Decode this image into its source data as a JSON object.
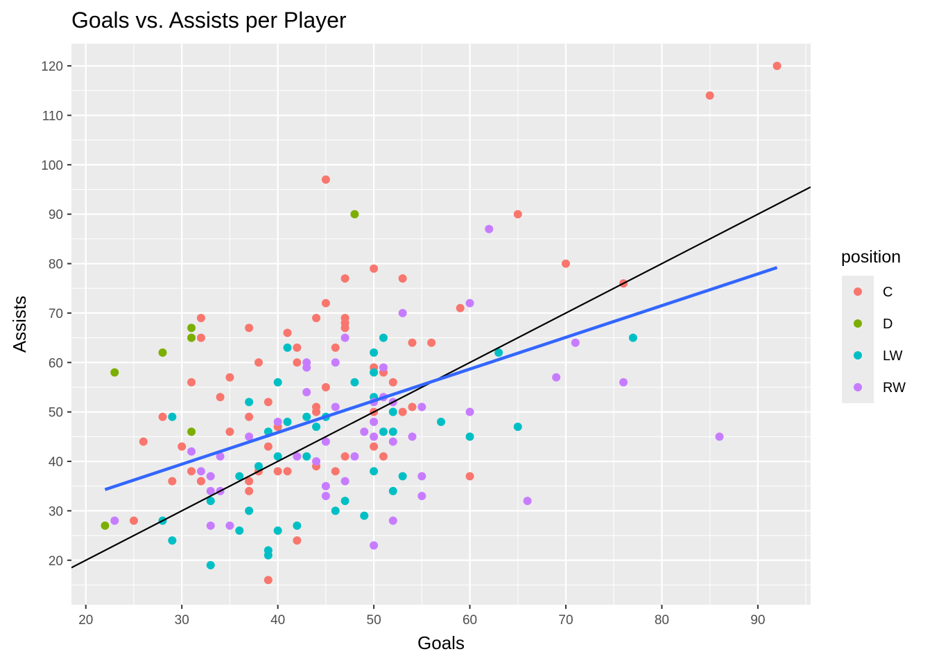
{
  "chart_data": {
    "type": "scatter",
    "title": "Goals vs. Assists per Player",
    "xlabel": "Goals",
    "ylabel": "Assists",
    "xlim": [
      18.5,
      95.5
    ],
    "ylim": [
      11.0,
      124.5
    ],
    "x_ticks": [
      20,
      30,
      40,
      50,
      60,
      70,
      80,
      90
    ],
    "y_ticks": [
      20,
      30,
      40,
      50,
      60,
      70,
      80,
      90,
      100,
      110,
      120
    ],
    "grid": true,
    "legend": {
      "title": "position",
      "placement": "right",
      "entries": [
        {
          "label": "C",
          "color": "#F8766D"
        },
        {
          "label": "D",
          "color": "#7CAE00"
        },
        {
          "label": "LW",
          "color": "#00BFC4"
        },
        {
          "label": "RW",
          "color": "#C77CFF"
        }
      ]
    },
    "series": [
      {
        "name": "C",
        "color": "#F8766D",
        "points": [
          [
            92,
            120
          ],
          [
            85,
            114
          ],
          [
            45,
            97
          ],
          [
            65,
            90
          ],
          [
            70,
            80
          ],
          [
            76,
            76
          ],
          [
            50,
            79
          ],
          [
            47,
            77
          ],
          [
            53,
            77
          ],
          [
            45,
            72
          ],
          [
            59,
            71
          ],
          [
            32,
            69
          ],
          [
            44,
            69
          ],
          [
            47,
            69
          ],
          [
            47,
            68
          ],
          [
            37,
            67
          ],
          [
            47,
            67
          ],
          [
            41,
            66
          ],
          [
            32,
            65
          ],
          [
            42,
            63
          ],
          [
            46,
            63
          ],
          [
            54,
            64
          ],
          [
            56,
            64
          ],
          [
            31,
            56
          ],
          [
            38,
            60
          ],
          [
            42,
            60
          ],
          [
            50,
            59
          ],
          [
            51,
            58
          ],
          [
            35,
            57
          ],
          [
            45,
            55
          ],
          [
            52,
            56
          ],
          [
            34,
            53
          ],
          [
            39,
            52
          ],
          [
            28,
            49
          ],
          [
            37,
            49
          ],
          [
            44,
            51
          ],
          [
            44,
            50
          ],
          [
            50,
            50
          ],
          [
            53,
            50
          ],
          [
            54,
            51
          ],
          [
            35,
            46
          ],
          [
            40,
            47
          ],
          [
            26,
            44
          ],
          [
            30,
            43
          ],
          [
            39,
            43
          ],
          [
            50,
            43
          ],
          [
            47,
            41
          ],
          [
            51,
            41
          ],
          [
            31,
            38
          ],
          [
            38,
            38
          ],
          [
            40,
            38
          ],
          [
            41,
            38
          ],
          [
            44,
            39
          ],
          [
            46,
            38
          ],
          [
            60,
            37
          ],
          [
            32,
            36
          ],
          [
            37,
            36
          ],
          [
            29,
            36
          ],
          [
            37,
            34
          ],
          [
            25,
            28
          ],
          [
            42,
            24
          ],
          [
            39,
            16
          ]
        ]
      },
      {
        "name": "D",
        "color": "#7CAE00",
        "points": [
          [
            48,
            90
          ],
          [
            31,
            67
          ],
          [
            31,
            65
          ],
          [
            28,
            62
          ],
          [
            23,
            58
          ],
          [
            31,
            46
          ],
          [
            22,
            27
          ]
        ]
      },
      {
        "name": "LW",
        "color": "#00BFC4",
        "points": [
          [
            77,
            65
          ],
          [
            63,
            62
          ],
          [
            41,
            63
          ],
          [
            51,
            65
          ],
          [
            50,
            62
          ],
          [
            50,
            58
          ],
          [
            40,
            56
          ],
          [
            48,
            56
          ],
          [
            37,
            52
          ],
          [
            50,
            53
          ],
          [
            52,
            50
          ],
          [
            29,
            49
          ],
          [
            43,
            49
          ],
          [
            45,
            49
          ],
          [
            41,
            48
          ],
          [
            57,
            48
          ],
          [
            39,
            46
          ],
          [
            44,
            47
          ],
          [
            51,
            46
          ],
          [
            52,
            46
          ],
          [
            65,
            47
          ],
          [
            60,
            45
          ],
          [
            40,
            41
          ],
          [
            43,
            41
          ],
          [
            38,
            39
          ],
          [
            36,
            37
          ],
          [
            50,
            38
          ],
          [
            53,
            37
          ],
          [
            52,
            34
          ],
          [
            33,
            32
          ],
          [
            47,
            32
          ],
          [
            37,
            30
          ],
          [
            46,
            30
          ],
          [
            49,
            29
          ],
          [
            28,
            28
          ],
          [
            29,
            24
          ],
          [
            36,
            26
          ],
          [
            40,
            26
          ],
          [
            42,
            27
          ],
          [
            39,
            22
          ],
          [
            39,
            21
          ],
          [
            33,
            19
          ]
        ]
      },
      {
        "name": "RW",
        "color": "#C77CFF",
        "points": [
          [
            62,
            87
          ],
          [
            60,
            72
          ],
          [
            53,
            70
          ],
          [
            47,
            65
          ],
          [
            71,
            64
          ],
          [
            43,
            60
          ],
          [
            46,
            60
          ],
          [
            43,
            59
          ],
          [
            51,
            59
          ],
          [
            69,
            57
          ],
          [
            76,
            56
          ],
          [
            43,
            54
          ],
          [
            51,
            53
          ],
          [
            50,
            52
          ],
          [
            52,
            52
          ],
          [
            46,
            51
          ],
          [
            55,
            51
          ],
          [
            40,
            48
          ],
          [
            50,
            48
          ],
          [
            60,
            50
          ],
          [
            49,
            46
          ],
          [
            37,
            45
          ],
          [
            50,
            45
          ],
          [
            54,
            45
          ],
          [
            86,
            45
          ],
          [
            45,
            44
          ],
          [
            52,
            44
          ],
          [
            31,
            42
          ],
          [
            34,
            41
          ],
          [
            42,
            41
          ],
          [
            48,
            41
          ],
          [
            44,
            40
          ],
          [
            32,
            38
          ],
          [
            33,
            37
          ],
          [
            47,
            36
          ],
          [
            55,
            37
          ],
          [
            45,
            35
          ],
          [
            33,
            34
          ],
          [
            34,
            34
          ],
          [
            45,
            33
          ],
          [
            55,
            33
          ],
          [
            66,
            32
          ],
          [
            23,
            28
          ],
          [
            33,
            27
          ],
          [
            35,
            27
          ],
          [
            52,
            28
          ],
          [
            50,
            23
          ]
        ]
      }
    ],
    "lines": [
      {
        "name": "reference line y = x",
        "color": "#000000",
        "x1": 18.5,
        "y1": 18.5,
        "x2": 95.5,
        "y2": 95.5
      },
      {
        "name": "linear fit",
        "color": "#3366FF",
        "x1": 22,
        "y1": 34.3,
        "x2": 92,
        "y2": 79.2
      }
    ]
  }
}
